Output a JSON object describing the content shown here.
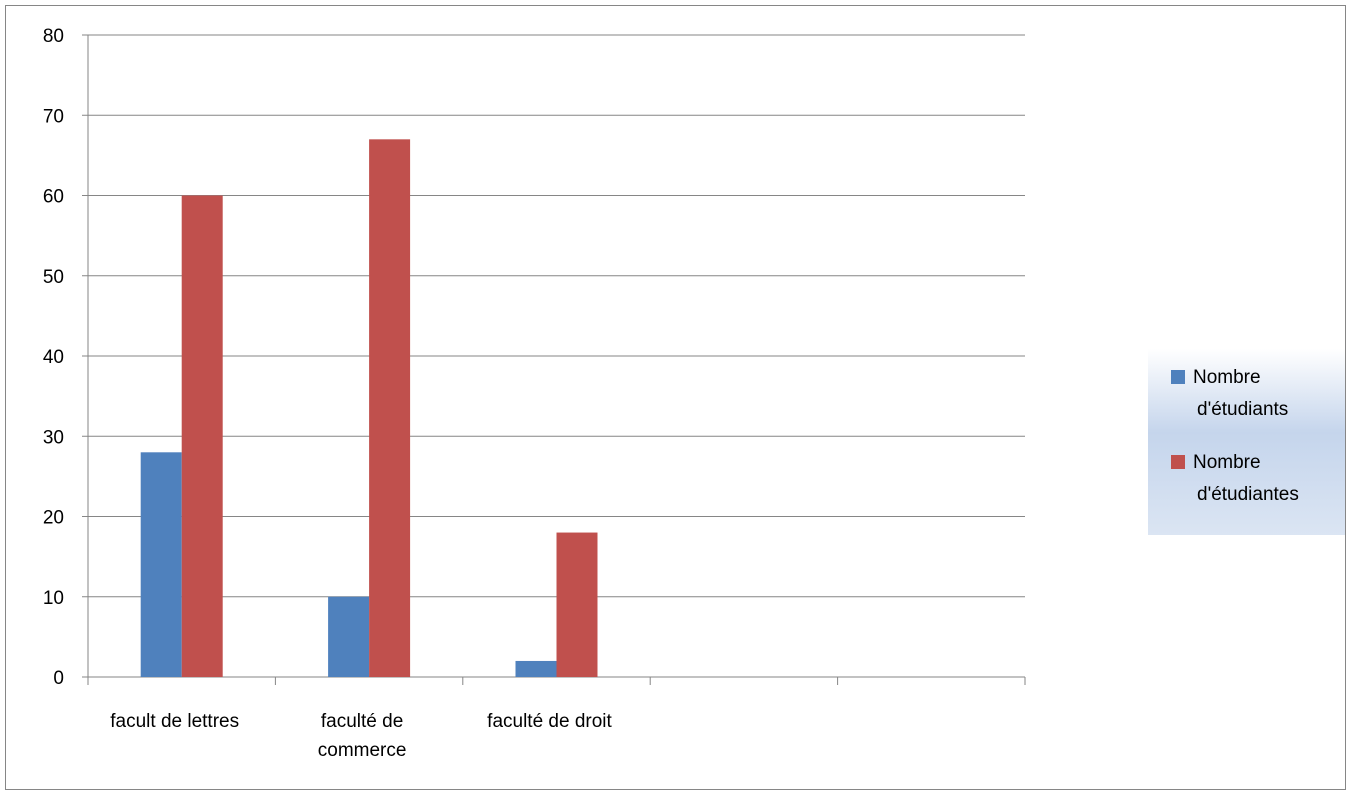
{
  "chart_data": {
    "type": "bar",
    "title": "",
    "xlabel": "",
    "ylabel": "",
    "ylim": [
      0,
      80
    ],
    "yticks": [
      0,
      10,
      20,
      30,
      40,
      50,
      60,
      70,
      80
    ],
    "categories": [
      [
        "facult de lettres"
      ],
      [
        "faculté de",
        "commerce"
      ],
      [
        "faculté de droit"
      ],
      [
        ""
      ],
      [
        ""
      ]
    ],
    "series": [
      {
        "name": [
          "Nombre",
          "d'étudiants"
        ],
        "color": "#4F81BD",
        "values": [
          28,
          10,
          2,
          null,
          null
        ]
      },
      {
        "name": [
          "Nombre",
          "d'étudiantes"
        ],
        "color": "#C0504D",
        "values": [
          60,
          67,
          18,
          null,
          null
        ]
      }
    ],
    "grid": true,
    "legend_position": "right"
  }
}
